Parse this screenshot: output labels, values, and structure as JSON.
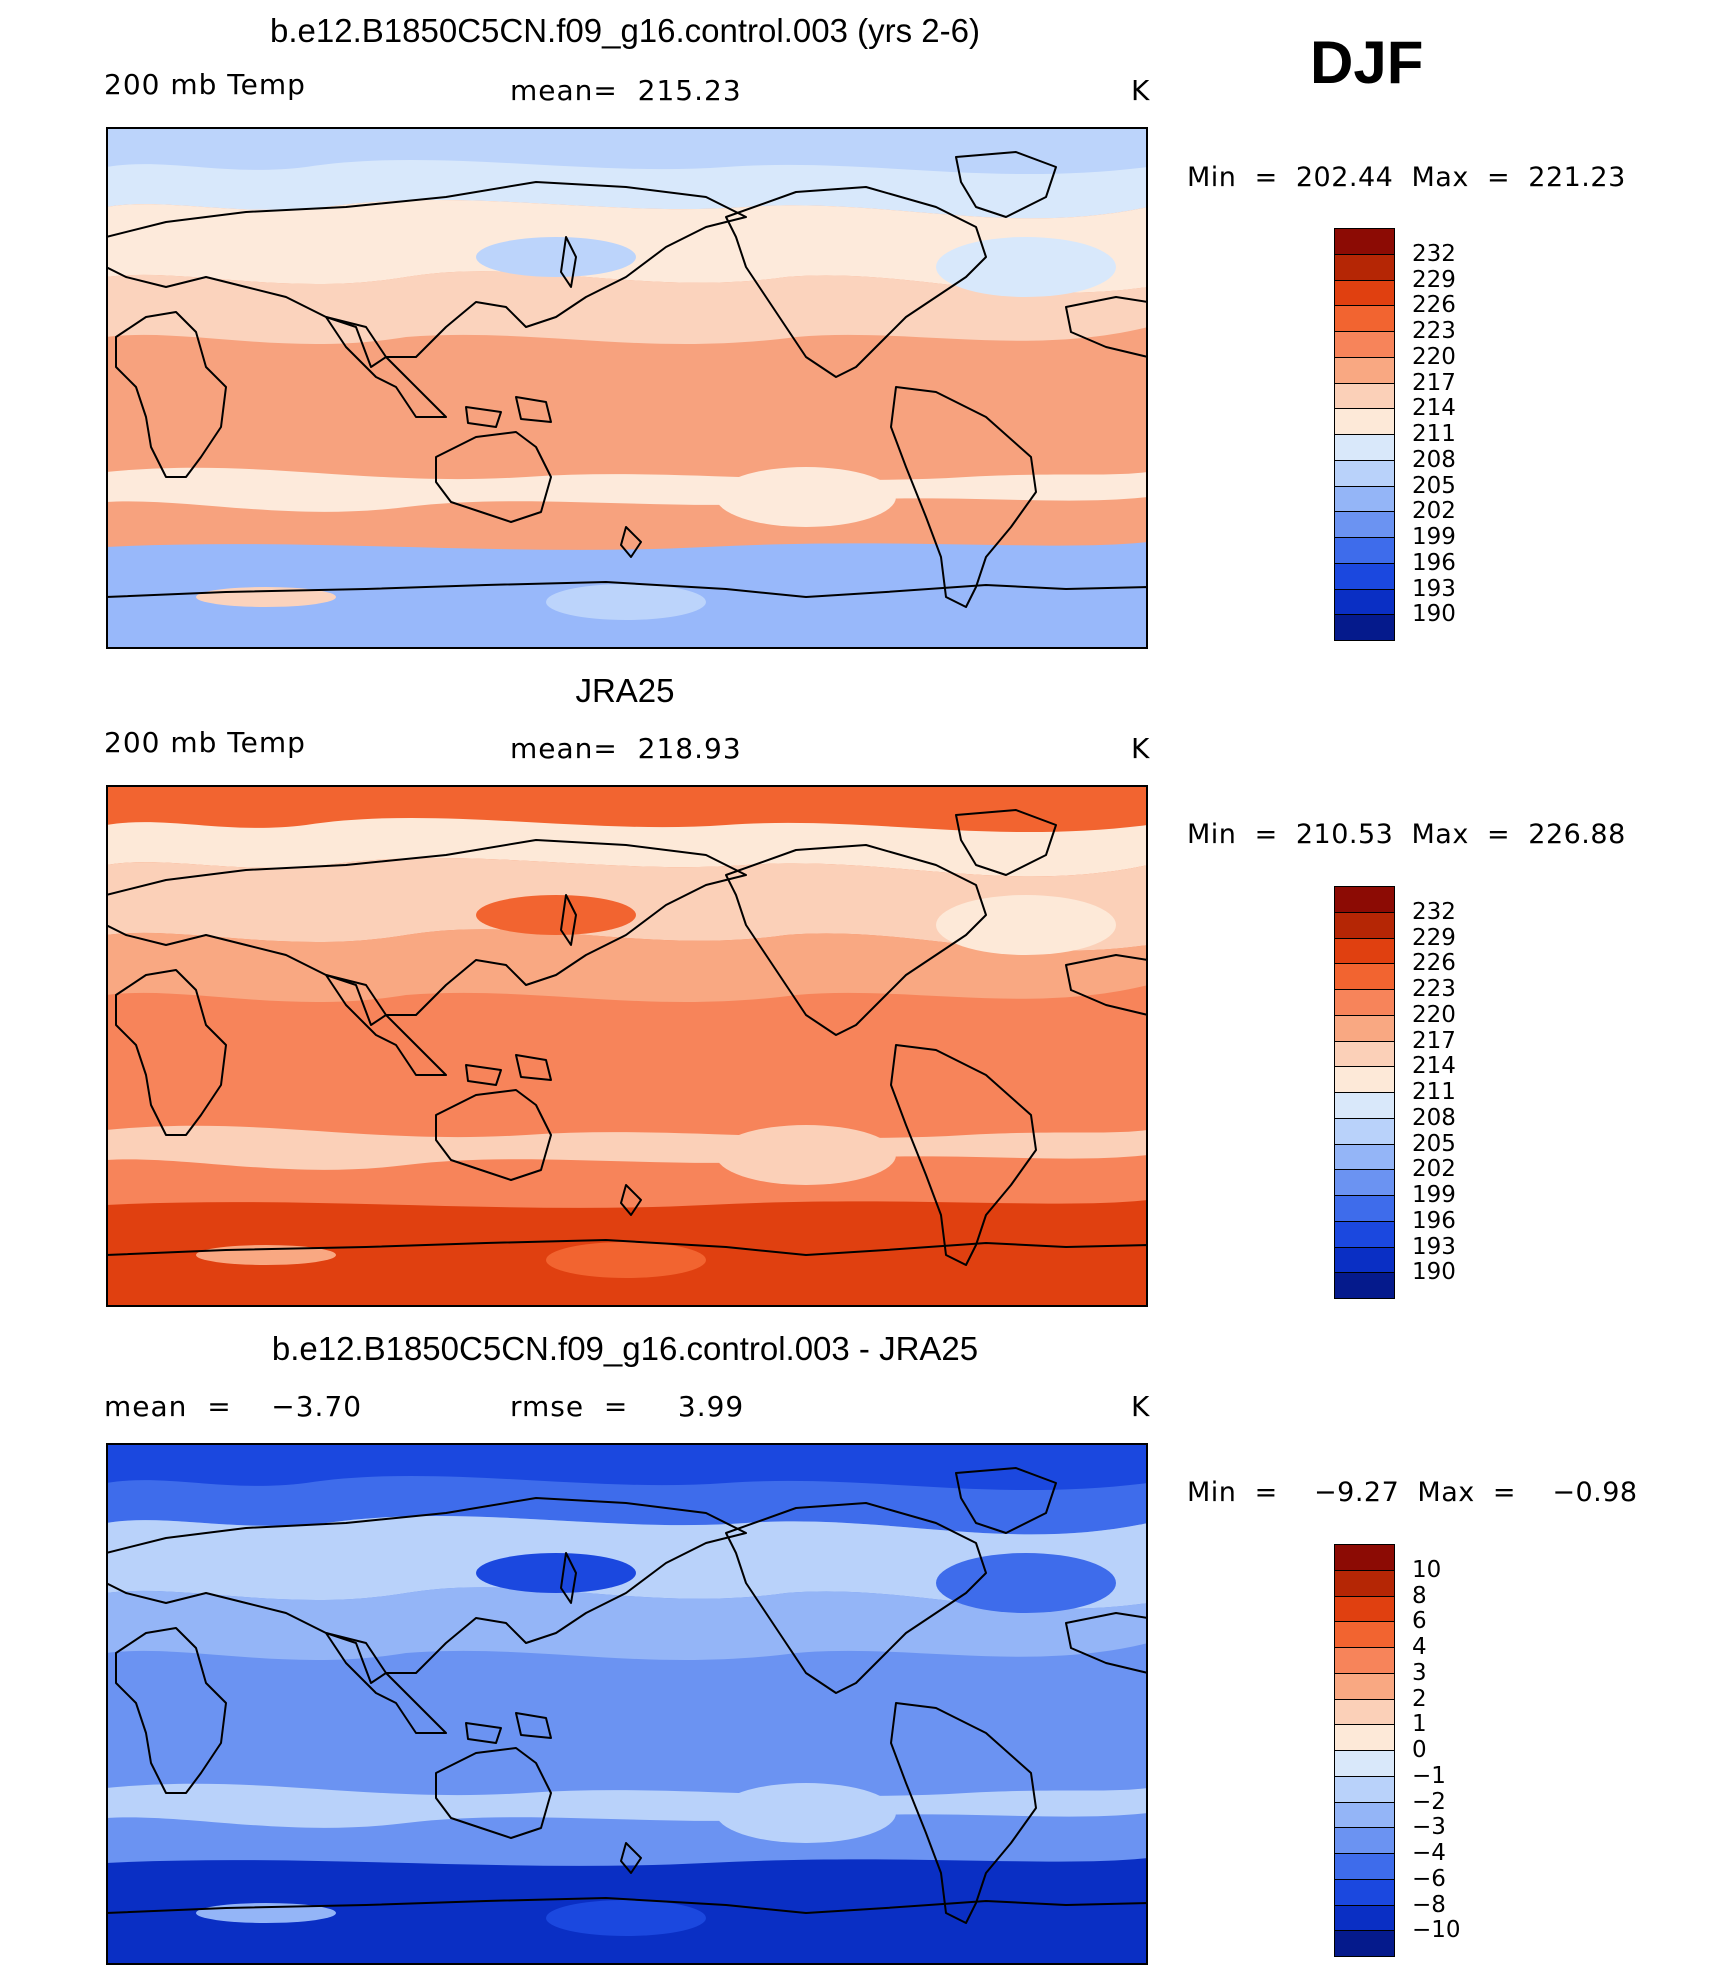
{
  "season": "DJF",
  "panels": [
    {
      "title": "b.e12.B1850C5CN.f09_g16.control.003 (yrs 2-6)",
      "left_label": "200 mb Temp",
      "center_label": "mean=  215.23",
      "units": "K",
      "stats": "Min  =  202.44  Max  =  221.23",
      "bands": [
        "#f7a27e",
        "#fbd3bd",
        "#fdeadb",
        "#d8e8fb",
        "#bcd4fb",
        "#98b8fa"
      ],
      "colorbar": {
        "labels": [
          "232",
          "229",
          "226",
          "223",
          "220",
          "217",
          "214",
          "211",
          "208",
          "205",
          "202",
          "199",
          "196",
          "193",
          "190"
        ],
        "colors": [
          "#8c0b04",
          "#b52605",
          "#e04010",
          "#f26430",
          "#f7845a",
          "#f9a882",
          "#fbd0b8",
          "#fde9d8",
          "#d9e8fa",
          "#b9d2fa",
          "#94b5f7",
          "#6b93f2",
          "#3e6ceb",
          "#1b48df",
          "#0a2fc4",
          "#051a8c"
        ]
      }
    },
    {
      "title": "JRA25",
      "left_label": "200 mb Temp",
      "center_label": "mean=  218.93",
      "units": "K",
      "stats": "Min  =  210.53  Max  =  226.88",
      "bands": [
        "#f7845a",
        "#f9a882",
        "#fbd0b8",
        "#fde9d8",
        "#f26430",
        "#e04010"
      ],
      "colorbar": {
        "labels": [
          "232",
          "229",
          "226",
          "223",
          "220",
          "217",
          "214",
          "211",
          "208",
          "205",
          "202",
          "199",
          "196",
          "193",
          "190"
        ],
        "colors": [
          "#8c0b04",
          "#b52605",
          "#e04010",
          "#f26430",
          "#f7845a",
          "#f9a882",
          "#fbd0b8",
          "#fde9d8",
          "#d9e8fa",
          "#b9d2fa",
          "#94b5f7",
          "#6b93f2",
          "#3e6ceb",
          "#1b48df",
          "#0a2fc4",
          "#051a8c"
        ]
      }
    },
    {
      "title": "b.e12.B1850C5CN.f09_g16.control.003 - JRA25",
      "left_label": "mean  =    −3.70",
      "center_label": "rmse  =     3.99",
      "units": "K",
      "stats": "Min  =    −9.27  Max  =    −0.98",
      "bands": [
        "#6b93f2",
        "#94b5f7",
        "#b9d2fa",
        "#3e6ceb",
        "#1b48df",
        "#0a2fc4"
      ],
      "colorbar": {
        "labels": [
          "10",
          "8",
          "6",
          "4",
          "3",
          "2",
          "1",
          "0",
          "−1",
          "−2",
          "−3",
          "−4",
          "−6",
          "−8",
          "−10"
        ],
        "colors": [
          "#8c0b04",
          "#b52605",
          "#e04010",
          "#f26430",
          "#f7845a",
          "#f9a882",
          "#fbd0b8",
          "#fde9d8",
          "#d9e8fa",
          "#b9d2fa",
          "#94b5f7",
          "#6b93f2",
          "#3e6ceb",
          "#1b48df",
          "#0a2fc4",
          "#051a8c"
        ]
      }
    }
  ]
}
